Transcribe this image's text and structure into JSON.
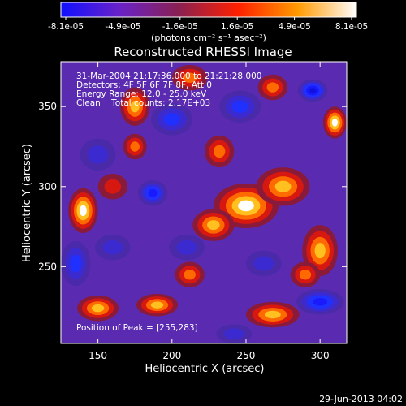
{
  "chart_data": {
    "type": "heatmap",
    "title": "Reconstructed RHESSI Image",
    "xlabel": "Heliocentric X (arcsec)",
    "ylabel": "Heliocentric Y (arcsec)",
    "xlim": [
      125,
      318
    ],
    "ylim": [
      202,
      378
    ],
    "x_ticks": [
      150,
      200,
      250,
      300
    ],
    "y_ticks": [
      250,
      300,
      350
    ],
    "colorbar": {
      "ticks": [
        "-8.1e-05",
        "-4.9e-05",
        "-1.6e-05",
        "1.6e-05",
        "4.9e-05",
        "8.1e-05"
      ],
      "min": -8.1e-05,
      "max": 8.1e-05,
      "unit_label": "(photons cm⁻² s⁻¹ asec⁻²)",
      "colors": [
        "#1010ff",
        "#6a22c8",
        "#8a2050",
        "#ff2000",
        "#ff9a00",
        "#ffffff"
      ]
    },
    "annotations": [
      "31-Mar-2004 21:17:36.000 to 21:21:28.000",
      "Detectors: 4F 5F 6F 7F 8F, Att 0",
      "Energy Range: 12.0 - 25.0 keV",
      "Clean    Total counts: 2.17E+03"
    ],
    "peak_text": "Position of Peak = [255,283]",
    "peak": [
      255,
      283
    ],
    "blobs": [
      {
        "x": 250,
        "y": 288,
        "v": 1.0,
        "sx": 22,
        "sy": 14
      },
      {
        "x": 275,
        "y": 300,
        "v": 0.8,
        "sx": 18,
        "sy": 12
      },
      {
        "x": 228,
        "y": 276,
        "v": 0.75,
        "sx": 14,
        "sy": 10
      },
      {
        "x": 300,
        "y": 260,
        "v": 0.75,
        "sx": 12,
        "sy": 16
      },
      {
        "x": 310,
        "y": 340,
        "v": 0.9,
        "sx": 8,
        "sy": 10
      },
      {
        "x": 175,
        "y": 350,
        "v": 0.7,
        "sx": 10,
        "sy": 12
      },
      {
        "x": 212,
        "y": 368,
        "v": 0.6,
        "sx": 12,
        "sy": 8
      },
      {
        "x": 140,
        "y": 285,
        "v": 0.9,
        "sx": 10,
        "sy": 14
      },
      {
        "x": 232,
        "y": 322,
        "v": 0.5,
        "sx": 10,
        "sy": 10
      },
      {
        "x": 160,
        "y": 300,
        "v": 0.4,
        "sx": 10,
        "sy": 8
      },
      {
        "x": 150,
        "y": 224,
        "v": 0.7,
        "sx": 14,
        "sy": 8
      },
      {
        "x": 190,
        "y": 226,
        "v": 0.7,
        "sx": 14,
        "sy": 7
      },
      {
        "x": 268,
        "y": 220,
        "v": 0.8,
        "sx": 18,
        "sy": 8
      },
      {
        "x": 290,
        "y": 245,
        "v": 0.5,
        "sx": 10,
        "sy": 8
      },
      {
        "x": 212,
        "y": 245,
        "v": 0.55,
        "sx": 10,
        "sy": 8
      },
      {
        "x": 268,
        "y": 362,
        "v": 0.5,
        "sx": 10,
        "sy": 8
      },
      {
        "x": 175,
        "y": 325,
        "v": 0.5,
        "sx": 8,
        "sy": 8
      },
      {
        "x": 187,
        "y": 296,
        "v": -0.8,
        "sx": 10,
        "sy": 8
      },
      {
        "x": 135,
        "y": 252,
        "v": -0.65,
        "sx": 10,
        "sy": 14
      },
      {
        "x": 300,
        "y": 228,
        "v": -0.7,
        "sx": 16,
        "sy": 8
      },
      {
        "x": 295,
        "y": 360,
        "v": -0.9,
        "sx": 10,
        "sy": 7
      },
      {
        "x": 200,
        "y": 342,
        "v": -0.5,
        "sx": 14,
        "sy": 10
      },
      {
        "x": 246,
        "y": 350,
        "v": -0.55,
        "sx": 14,
        "sy": 10
      },
      {
        "x": 210,
        "y": 262,
        "v": -0.35,
        "sx": 12,
        "sy": 8
      },
      {
        "x": 160,
        "y": 262,
        "v": -0.45,
        "sx": 12,
        "sy": 8
      },
      {
        "x": 262,
        "y": 252,
        "v": -0.35,
        "sx": 12,
        "sy": 8
      },
      {
        "x": 242,
        "y": 208,
        "v": -0.45,
        "sx": 12,
        "sy": 6
      },
      {
        "x": 150,
        "y": 320,
        "v": -0.3,
        "sx": 12,
        "sy": 10
      }
    ]
  },
  "footer": {
    "date": "29-Jun-2013 04:02"
  }
}
